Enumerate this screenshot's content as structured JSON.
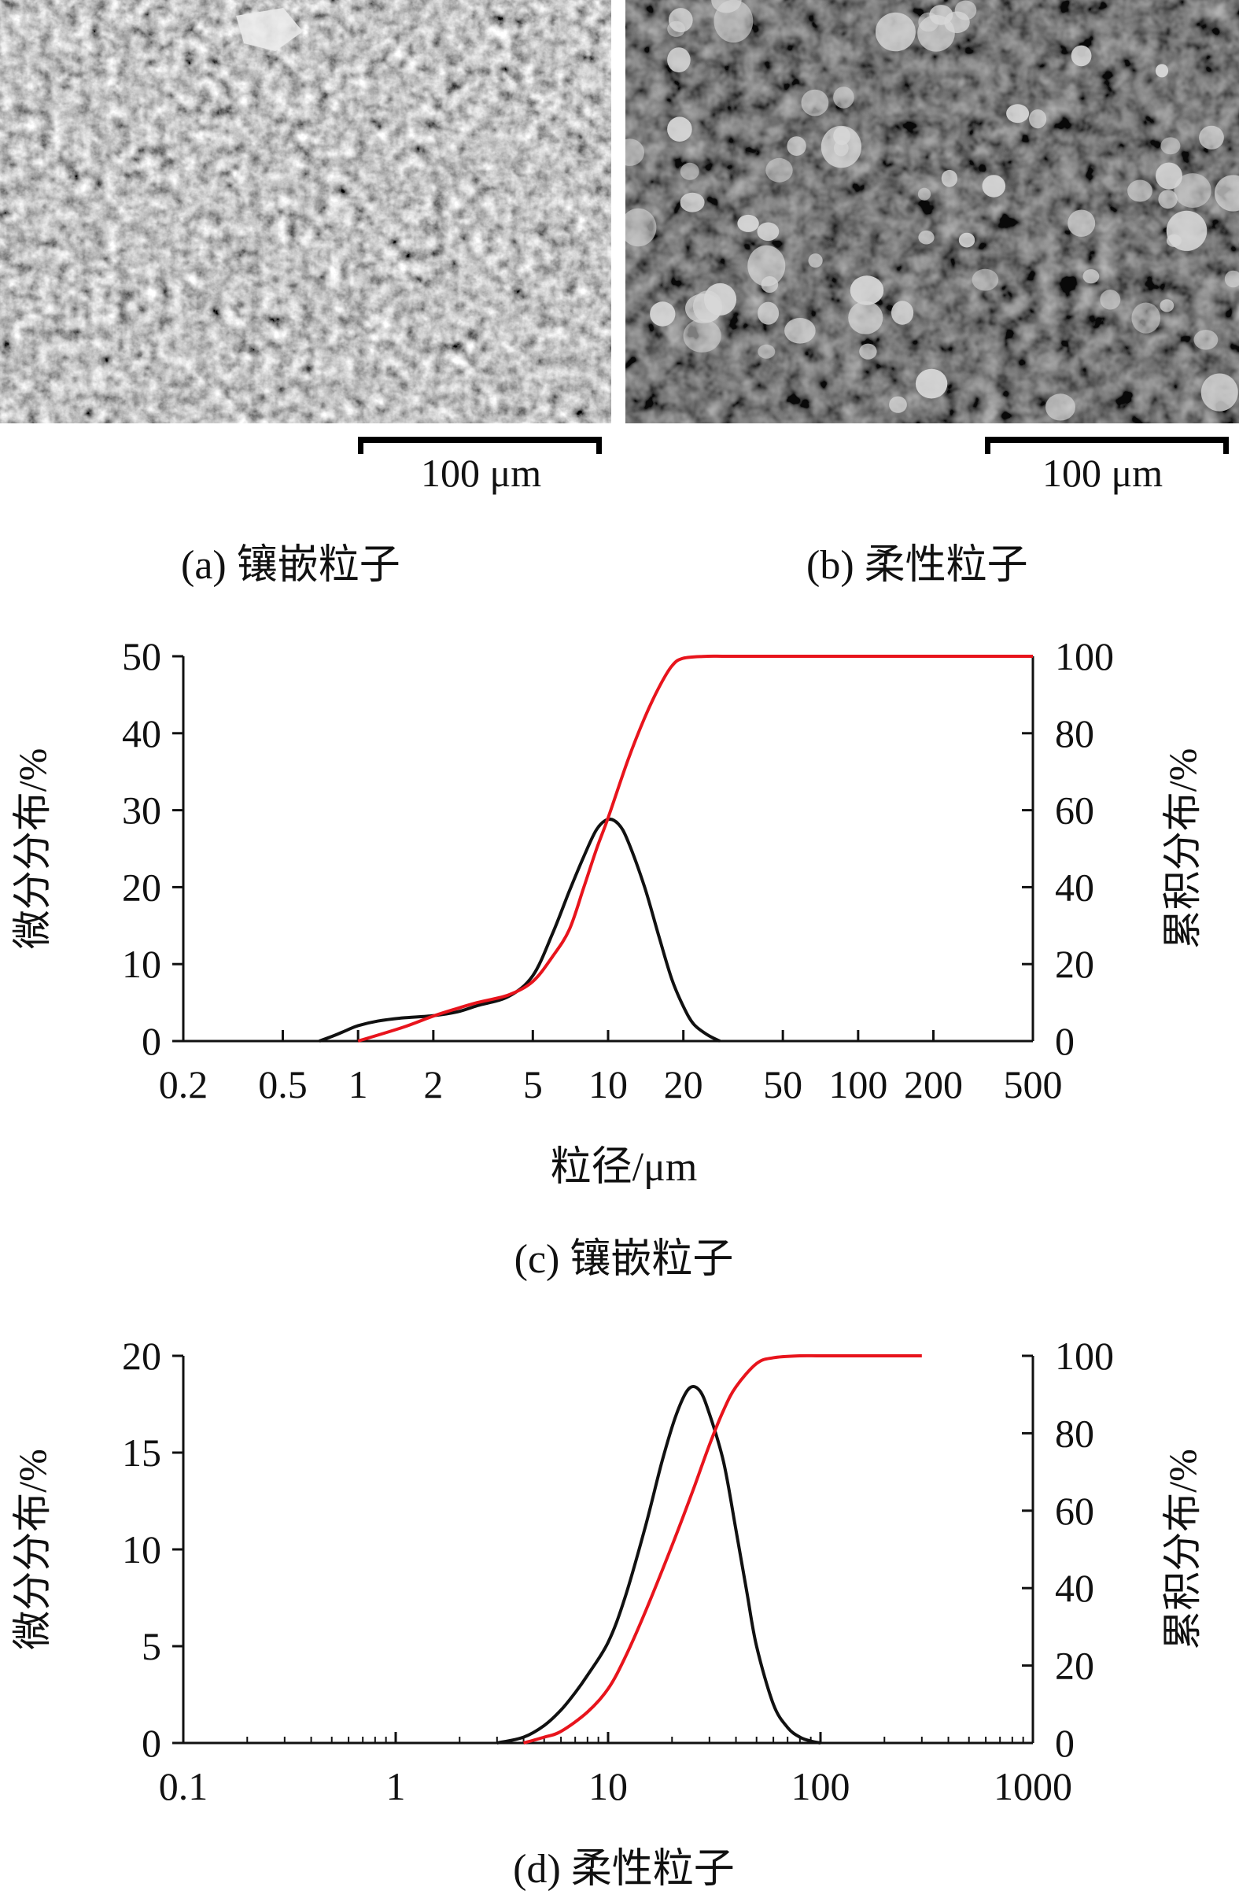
{
  "panels": {
    "a": {
      "caption": "(a) 镶嵌粒子",
      "scale": "100 μm"
    },
    "b": {
      "caption": "(b) 柔性粒子",
      "scale": "100 μm"
    }
  },
  "colors": {
    "differential": "#111111",
    "cumulative": "#e8141c"
  },
  "chart_data": [
    {
      "id": "c",
      "caption": "(c) 镶嵌粒子",
      "type": "line",
      "x_scale": "log",
      "xlim": [
        0.2,
        500
      ],
      "x_ticks": [
        0.2,
        0.5,
        1,
        2,
        5,
        10,
        20,
        50,
        100,
        200,
        500
      ],
      "x_tick_labels": [
        "0.2",
        "0.5",
        "1",
        "2",
        "5",
        "10",
        "20",
        "50",
        "100",
        "200",
        "500"
      ],
      "xlabel": "粒径/μm",
      "ylabel_left": "微分分布/%",
      "ylabel_right": "累积分布/%",
      "ylim_left": [
        0,
        50
      ],
      "ylim_right": [
        0,
        100
      ],
      "y_ticks_left": [
        0,
        10,
        20,
        30,
        40,
        50
      ],
      "y_ticks_right": [
        0,
        20,
        40,
        60,
        80,
        100
      ],
      "series": [
        {
          "axis": "left",
          "color": "#111111",
          "x": [
            0.7,
            0.8,
            0.9,
            1.0,
            1.2,
            1.5,
            2.0,
            2.5,
            3.0,
            4.0,
            5.0,
            6.0,
            7.0,
            8.0,
            9.0,
            10.0,
            11.0,
            12.0,
            14.0,
            16.0,
            18.0,
            20.0,
            22.0,
            25.0,
            28.0
          ],
          "y": [
            0,
            0.7,
            1.4,
            2.0,
            2.6,
            3.0,
            3.3,
            3.8,
            4.6,
            5.8,
            8.5,
            14.0,
            19.5,
            24.0,
            27.5,
            28.8,
            28.2,
            26.0,
            20.0,
            13.5,
            8.0,
            4.5,
            2.2,
            0.8,
            0
          ]
        },
        {
          "axis": "right",
          "color": "#e8141c",
          "x": [
            1.0,
            1.5,
            2.0,
            2.5,
            3.0,
            4.0,
            5.0,
            6.0,
            7.0,
            8.0,
            9.0,
            10.0,
            12.0,
            14.0,
            16.0,
            18.0,
            20.0,
            25.0,
            30.0,
            50.0,
            100.0,
            200.0,
            500.0
          ],
          "y": [
            0,
            3.5,
            6.5,
            8.5,
            10,
            12,
            15.5,
            22,
            29,
            40,
            50,
            58,
            73,
            84,
            92,
            97.5,
            99.5,
            100,
            100,
            100,
            100,
            100,
            100
          ]
        }
      ]
    },
    {
      "id": "d",
      "caption": "(d) 柔性粒子",
      "type": "line",
      "x_scale": "log",
      "xlim": [
        0.1,
        1000
      ],
      "x_ticks": [
        0.1,
        1,
        10,
        100,
        1000
      ],
      "x_tick_labels": [
        "0.1",
        "1",
        "10",
        "100",
        "1000"
      ],
      "ylabel_left": "微分分布/%",
      "ylabel_right": "累积分布/%",
      "ylim_left": [
        0,
        20
      ],
      "ylim_right": [
        0,
        100
      ],
      "y_ticks_left": [
        0,
        5,
        10,
        15,
        20
      ],
      "y_ticks_right": [
        0,
        20,
        40,
        60,
        80,
        100
      ],
      "series": [
        {
          "axis": "left",
          "color": "#111111",
          "x": [
            3.0,
            4.0,
            5.0,
            6.0,
            7.0,
            8.0,
            10.0,
            12.0,
            15.0,
            18.0,
            21.0,
            24.0,
            27.0,
            30.0,
            35.0,
            40.0,
            45.0,
            50.0,
            60.0,
            70.0,
            80.0,
            90.0,
            100.0
          ],
          "y": [
            0,
            0.3,
            0.9,
            1.7,
            2.6,
            3.5,
            5.2,
            7.5,
            11.2,
            14.6,
            17.0,
            18.3,
            18.2,
            17.0,
            14.5,
            11.0,
            7.8,
            5.0,
            2.0,
            0.8,
            0.3,
            0.1,
            0
          ]
        },
        {
          "axis": "right",
          "color": "#e8141c",
          "x": [
            4.0,
            5.0,
            6.0,
            8.0,
            10.0,
            12.0,
            15.0,
            20.0,
            25.0,
            30.0,
            35.0,
            40.0,
            50.0,
            60.0,
            80.0,
            100.0,
            150.0,
            200.0,
            300.0
          ],
          "y": [
            0,
            1.5,
            3,
            8,
            14,
            22,
            34,
            51,
            65,
            77,
            86,
            92,
            98,
            99.5,
            100,
            100,
            100,
            100,
            100
          ]
        }
      ]
    }
  ]
}
